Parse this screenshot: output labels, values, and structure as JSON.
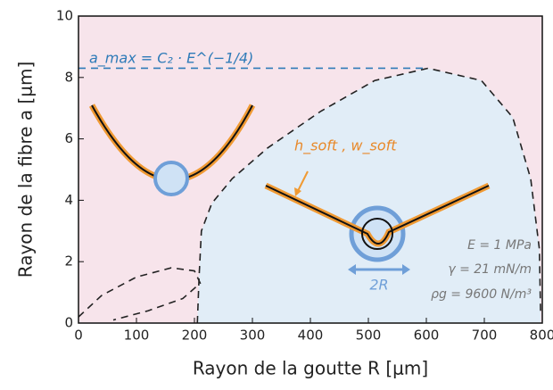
{
  "chart_data": {
    "type": "line",
    "xlabel": "Rayon de la goutte R [μm]",
    "ylabel": "Rayon de la fibre a [μm]",
    "xlim": [
      0,
      800
    ],
    "ylim": [
      0,
      10
    ],
    "xticks": [
      0,
      100,
      200,
      300,
      400,
      500,
      600,
      700,
      800
    ],
    "yticks": [
      0,
      2,
      4,
      6,
      8,
      10
    ],
    "background": "#f7e4eb",
    "series": [
      {
        "color": "#222222",
        "fill": "#e1edf7",
        "dash": true,
        "x": [
          205,
          208,
          212,
          230,
          265,
          326,
          418,
          511,
          603,
          695,
          749,
          780,
          795,
          797
        ],
        "values": [
          0,
          1.5,
          3.0,
          3.9,
          4.7,
          5.7,
          6.9,
          7.9,
          8.3,
          7.9,
          6.7,
          4.7,
          2.4,
          0.35
        ]
      },
      {
        "color": "#2f7bb8",
        "dash": true,
        "x": [
          0,
          600
        ],
        "values": [
          8.3,
          8.3
        ]
      },
      {
        "color": "#222222",
        "dash": true,
        "x": [
          0,
          40,
          100,
          160,
          200,
          210,
          180,
          120,
          60
        ],
        "values": [
          0.2,
          0.9,
          1.5,
          1.8,
          1.7,
          1.3,
          0.8,
          0.4,
          0.1
        ]
      }
    ],
    "annotations": [
      "a_max = C₂ · E^(−1/4)",
      "h_soft , w_soft",
      "2R",
      "E = 1 MPa",
      "γ = 21 mN/m",
      "ρg = 9600 N/m³"
    ]
  }
}
